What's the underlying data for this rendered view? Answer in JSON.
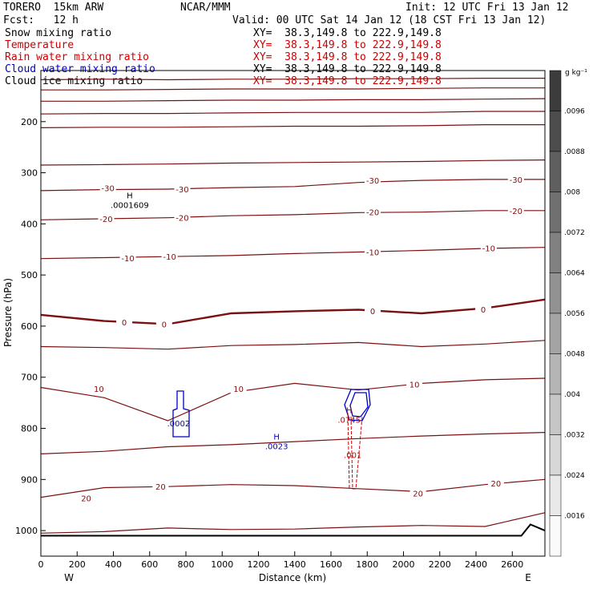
{
  "header": {
    "model": "TORERO  15km ARW",
    "center": "NCAR/MMM",
    "init": "Init: 12 UTC Fri 13 Jan 12",
    "fcst": "Fcst:   12 h",
    "valid": "Valid: 00 UTC Sat 14 Jan 12 (18 CST Fri 13 Jan 12)",
    "fields": [
      {
        "name": "Snow mixing ratio",
        "xy": "XY=  38.3,149.8 to 222.9,149.8",
        "color": "#000000"
      },
      {
        "name": "Temperature",
        "xy": "XY=  38.3,149.8 to 222.9,149.8",
        "color": "#cc0000"
      },
      {
        "name": "Rain water mixing ratio",
        "xy": "XY=  38.3,149.8 to 222.9,149.8",
        "color": "#cc0000"
      },
      {
        "name": "Cloud water mixing ratio",
        "xy": "XY=  38.3,149.8 to 222.9,149.8",
        "color": "#0000cc"
      },
      {
        "name": "Cloud ice mixing ratio",
        "xy": "XY=  38.3,149.8 to 222.9,149.8",
        "color": "#000000"
      }
    ]
  },
  "chart_data": {
    "type": "contour-cross-section",
    "xlabel": "Distance (km)",
    "ylabel": "Pressure (hPa)",
    "xlim": [
      0,
      2780
    ],
    "ylim": [
      1050,
      100
    ],
    "x_ticks": [
      0,
      200,
      400,
      600,
      800,
      1000,
      1200,
      1400,
      1600,
      1800,
      2000,
      2200,
      2400,
      2600
    ],
    "y_ticks": [
      200,
      300,
      400,
      500,
      600,
      700,
      800,
      900,
      1000
    ],
    "x_end_labels": {
      "left": "W",
      "right": "E"
    },
    "isotherm_labels": [
      {
        "label": "-30",
        "x": 370,
        "p": 330
      },
      {
        "label": "-30",
        "x": 780,
        "p": 332
      },
      {
        "label": "-30",
        "x": 1830,
        "p": 315
      },
      {
        "label": "-30",
        "x": 2620,
        "p": 313
      },
      {
        "label": "-20",
        "x": 360,
        "p": 390
      },
      {
        "label": "-20",
        "x": 780,
        "p": 388
      },
      {
        "label": "-20",
        "x": 1830,
        "p": 377
      },
      {
        "label": "-20",
        "x": 2620,
        "p": 374
      },
      {
        "label": "-10",
        "x": 480,
        "p": 467
      },
      {
        "label": "-10",
        "x": 710,
        "p": 464
      },
      {
        "label": "-10",
        "x": 1830,
        "p": 455
      },
      {
        "label": "-10",
        "x": 2470,
        "p": 447
      },
      {
        "label": "0",
        "x": 460,
        "p": 592
      },
      {
        "label": "0",
        "x": 680,
        "p": 596
      },
      {
        "label": "0",
        "x": 1830,
        "p": 570
      },
      {
        "label": "0",
        "x": 2440,
        "p": 567
      },
      {
        "label": "10",
        "x": 320,
        "p": 722
      },
      {
        "label": "10",
        "x": 1090,
        "p": 722
      },
      {
        "label": "10",
        "x": 2060,
        "p": 714
      },
      {
        "label": "20",
        "x": 660,
        "p": 914
      },
      {
        "label": "20",
        "x": 250,
        "p": 936
      },
      {
        "label": "20",
        "x": 2080,
        "p": 927
      },
      {
        "label": "20",
        "x": 2510,
        "p": 907
      }
    ],
    "isotherms": [
      {
        "value": -70,
        "p": [
          118,
          117,
          118,
          117,
          117,
          116,
          116,
          115,
          115
        ]
      },
      {
        "value": -65,
        "p": [
          138,
          138,
          137,
          136,
          136,
          136,
          135,
          134,
          134
        ]
      },
      {
        "value": -60,
        "p": [
          160,
          160,
          159,
          158,
          158,
          157,
          157,
          156,
          155
        ]
      },
      {
        "value": -55,
        "p": [
          185,
          184,
          184,
          183,
          182,
          182,
          182,
          180,
          180
        ]
      },
      {
        "value": -50,
        "p": [
          212,
          211,
          211,
          210,
          209,
          209,
          208,
          206,
          206
        ]
      },
      {
        "value": -40,
        "p": [
          285,
          284,
          283,
          281,
          280,
          279,
          278,
          276,
          275
        ]
      },
      {
        "value": -30,
        "p": [
          335,
          333,
          332,
          329,
          327,
          319,
          315,
          313,
          313
        ]
      },
      {
        "value": -20,
        "p": [
          392,
          390,
          388,
          384,
          382,
          378,
          377,
          374,
          374
        ]
      },
      {
        "value": -10,
        "p": [
          468,
          466,
          464,
          462,
          458,
          455,
          452,
          448,
          446
        ]
      },
      {
        "value": 0,
        "p": [
          578,
          590,
          596,
          575,
          571,
          568,
          575,
          565,
          548
        ],
        "bold": true
      },
      {
        "value": 5,
        "p": [
          640,
          642,
          645,
          638,
          636,
          632,
          640,
          635,
          628
        ]
      },
      {
        "value": 10,
        "p": [
          720,
          740,
          785,
          730,
          712,
          725,
          712,
          705,
          702
        ]
      },
      {
        "value": 15,
        "p": [
          850,
          845,
          836,
          832,
          826,
          820,
          815,
          811,
          808
        ]
      },
      {
        "value": 20,
        "p": [
          935,
          916,
          914,
          910,
          912,
          918,
          924,
          910,
          900
        ]
      },
      {
        "value": 25,
        "p": [
          1005,
          1002,
          995,
          998,
          997,
          993,
          990,
          992,
          965
        ]
      }
    ],
    "isotherm_x": [
      0,
      350,
      700,
      1050,
      1400,
      1750,
      2100,
      2450,
      2780
    ],
    "terrain": {
      "x": [
        0,
        2650,
        2700,
        2780
      ],
      "p": [
        1010,
        1010,
        988,
        1000
      ]
    },
    "markers": [
      {
        "label": "H",
        "value": ".0001609",
        "x": 490,
        "p": 350,
        "color": "#000000"
      },
      {
        "label": "H",
        "value": ".0023",
        "x": 1300,
        "p": 822,
        "color": "#0000cc"
      },
      {
        "label": ".0002",
        "value": "",
        "x": 760,
        "p": 796,
        "color": "#0000cc"
      },
      {
        "label": "H",
        "value": ".0745",
        "x": 1700,
        "p": 770,
        "color": "#cc0000"
      },
      {
        "label": ".001",
        "value": "",
        "x": 1720,
        "p": 858,
        "color": "#cc0000"
      }
    ],
    "colorbar": {
      "unit": "g kg⁻¹",
      "labels": [
        ".0096",
        ".0088",
        ".008",
        ".0072",
        ".0064",
        ".0056",
        ".0048",
        ".004",
        ".0032",
        ".0024",
        ".0016"
      ]
    }
  }
}
